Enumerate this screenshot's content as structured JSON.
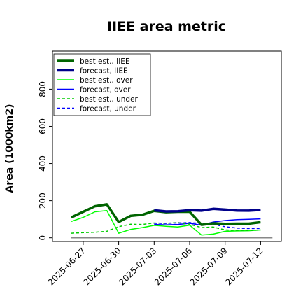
{
  "chart_data": {
    "type": "line",
    "title": "IIEE area metric",
    "xlabel": "",
    "ylabel": "Area (1000km2)",
    "ylim": [
      -20,
      1005
    ],
    "yticks": [
      0,
      200,
      400,
      600,
      800
    ],
    "x": [
      "2025-06-26",
      "2025-06-27",
      "2025-06-28",
      "2025-06-29",
      "2025-06-30",
      "2025-07-01",
      "2025-07-02",
      "2025-07-03",
      "2025-07-04",
      "2025-07-05",
      "2025-07-06",
      "2025-07-07",
      "2025-07-08",
      "2025-07-09",
      "2025-07-10",
      "2025-07-11",
      "2025-07-12",
      "2025-07-13"
    ],
    "xticks": [
      "2025-06-27",
      "2025-06-30",
      "2025-07-03",
      "2025-07-06",
      "2025-07-09",
      "2025-07-12"
    ],
    "highlighted_xtick": "2025-07-03",
    "highlight_color": "#228b22",
    "legend_position": "top-left",
    "grid": false,
    "series": [
      {
        "name": "best est., IIEE",
        "color": "#006400",
        "width": 3.5,
        "dash": "",
        "values": [
          110,
          140,
          170,
          180,
          85,
          118,
          124,
          145,
          138,
          140,
          140,
          70,
          78,
          75,
          76,
          76,
          84,
          null
        ]
      },
      {
        "name": "forecast, IIEE",
        "color": "#00008b",
        "width": 3.5,
        "dash": "",
        "values": [
          null,
          null,
          null,
          null,
          null,
          null,
          null,
          148,
          142,
          143,
          149,
          146,
          156,
          152,
          147,
          146,
          150,
          null
        ]
      },
      {
        "name": "best est., over",
        "color": "#00ff00",
        "width": 1.5,
        "dash": "",
        "values": [
          88,
          110,
          140,
          147,
          25,
          45,
          55,
          67,
          62,
          58,
          68,
          15,
          20,
          35,
          37,
          38,
          42,
          null
        ]
      },
      {
        "name": "forecast, over",
        "color": "#0000ff",
        "width": 1.5,
        "dash": "",
        "values": [
          null,
          null,
          null,
          null,
          null,
          null,
          null,
          72,
          70,
          72,
          78,
          68,
          85,
          93,
          98,
          100,
          102,
          null
        ]
      },
      {
        "name": "best est., under",
        "color": "#00cc00",
        "width": 1.5,
        "dash": "4,3",
        "values": [
          25,
          28,
          30,
          35,
          60,
          73,
          72,
          80,
          78,
          82,
          73,
          55,
          58,
          42,
          40,
          39,
          42,
          null
        ]
      },
      {
        "name": "forecast, under",
        "color": "#0000ff",
        "width": 1.5,
        "dash": "4,3",
        "values": [
          null,
          null,
          null,
          null,
          null,
          null,
          null,
          78,
          78,
          80,
          82,
          77,
          72,
          60,
          52,
          50,
          50,
          null
        ]
      }
    ]
  }
}
